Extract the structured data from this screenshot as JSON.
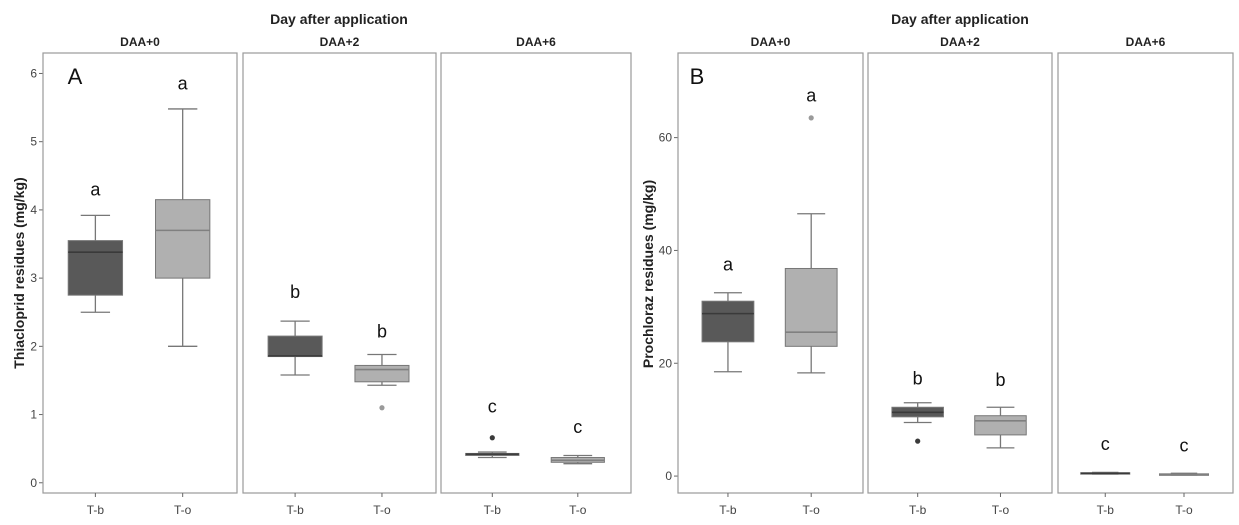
{
  "chart_data": [
    {
      "type": "boxplot",
      "panel_label": "A",
      "supertitle": "Day after application",
      "ylabel": "Thiacloprid residues (mg/kg)",
      "ylim": [
        -0.15,
        6.3
      ],
      "yticks": [
        0,
        1,
        2,
        3,
        4,
        5,
        6
      ],
      "facets": [
        {
          "label": "DAA+0",
          "categories": [
            "T-b",
            "T-o"
          ],
          "boxes": [
            {
              "category": "T-b",
              "min": 2.5,
              "q1": 2.75,
              "median": 3.38,
              "q3": 3.55,
              "max": 3.92,
              "outliers": [],
              "letter": "a",
              "letter_y": 4.3
            },
            {
              "category": "T-o",
              "min": 2.0,
              "q1": 3.0,
              "median": 3.7,
              "q3": 4.15,
              "max": 5.48,
              "outliers": [],
              "letter": "a",
              "letter_y": 5.85
            }
          ]
        },
        {
          "label": "DAA+2",
          "categories": [
            "T-b",
            "T-o"
          ],
          "boxes": [
            {
              "category": "T-b",
              "min": 1.58,
              "q1": 1.85,
              "median": 1.86,
              "q3": 2.15,
              "max": 2.37,
              "outliers": [],
              "letter": "b",
              "letter_y": 2.8
            },
            {
              "category": "T-o",
              "min": 1.43,
              "q1": 1.48,
              "median": 1.66,
              "q3": 1.72,
              "max": 1.88,
              "outliers": [
                1.1
              ],
              "letter": "b",
              "letter_y": 2.22
            }
          ]
        },
        {
          "label": "DAA+6",
          "categories": [
            "T-b",
            "T-o"
          ],
          "boxes": [
            {
              "category": "T-b",
              "min": 0.37,
              "q1": 0.4,
              "median": 0.42,
              "q3": 0.43,
              "max": 0.45,
              "outliers": [
                0.66
              ],
              "letter": "c",
              "letter_y": 1.12
            },
            {
              "category": "T-o",
              "min": 0.28,
              "q1": 0.3,
              "median": 0.33,
              "q3": 0.37,
              "max": 0.4,
              "outliers": [],
              "letter": "c",
              "letter_y": 0.82
            }
          ]
        }
      ]
    },
    {
      "type": "boxplot",
      "panel_label": "B",
      "supertitle": "Day after application",
      "ylabel": "Prochloraz residues (mg/kg)",
      "ylim": [
        -3,
        75
      ],
      "yticks": [
        0,
        20,
        40,
        60
      ],
      "facets": [
        {
          "label": "DAA+0",
          "categories": [
            "T-b",
            "T-o"
          ],
          "boxes": [
            {
              "category": "T-b",
              "min": 18.5,
              "q1": 23.8,
              "median": 28.8,
              "q3": 31.0,
              "max": 32.5,
              "outliers": [],
              "letter": "a",
              "letter_y": 37.5
            },
            {
              "category": "T-o",
              "min": 18.3,
              "q1": 23.0,
              "median": 25.5,
              "q3": 36.8,
              "max": 46.5,
              "outliers": [
                63.5
              ],
              "letter": "a",
              "letter_y": 67.5
            }
          ]
        },
        {
          "label": "DAA+2",
          "categories": [
            "T-b",
            "T-o"
          ],
          "boxes": [
            {
              "category": "T-b",
              "min": 9.5,
              "q1": 10.5,
              "median": 11.3,
              "q3": 12.2,
              "max": 13.0,
              "outliers": [
                6.2
              ],
              "letter": "b",
              "letter_y": 17.3
            },
            {
              "category": "T-o",
              "min": 5.0,
              "q1": 7.3,
              "median": 9.8,
              "q3": 10.7,
              "max": 12.2,
              "outliers": [],
              "letter": "b",
              "letter_y": 17.0
            }
          ]
        },
        {
          "label": "DAA+6",
          "categories": [
            "T-b",
            "T-o"
          ],
          "boxes": [
            {
              "category": "T-b",
              "min": 0.35,
              "q1": 0.4,
              "median": 0.5,
              "q3": 0.6,
              "max": 0.65,
              "outliers": [],
              "letter": "c",
              "letter_y": 5.7
            },
            {
              "category": "T-o",
              "min": 0.2,
              "q1": 0.25,
              "median": 0.3,
              "q3": 0.4,
              "max": 0.5,
              "outliers": [],
              "letter": "c",
              "letter_y": 5.4
            }
          ]
        }
      ]
    }
  ],
  "colors": {
    "T-b": "#595959",
    "T-o": "#b0b0b0",
    "whisker": "#777777",
    "median_on_dark": "#3a3a3a",
    "median_on_light": "#808080",
    "panel_border": "#9a9a9a",
    "outlier_dark": "#3a3a3a",
    "outlier_light": "#9a9a9a"
  }
}
